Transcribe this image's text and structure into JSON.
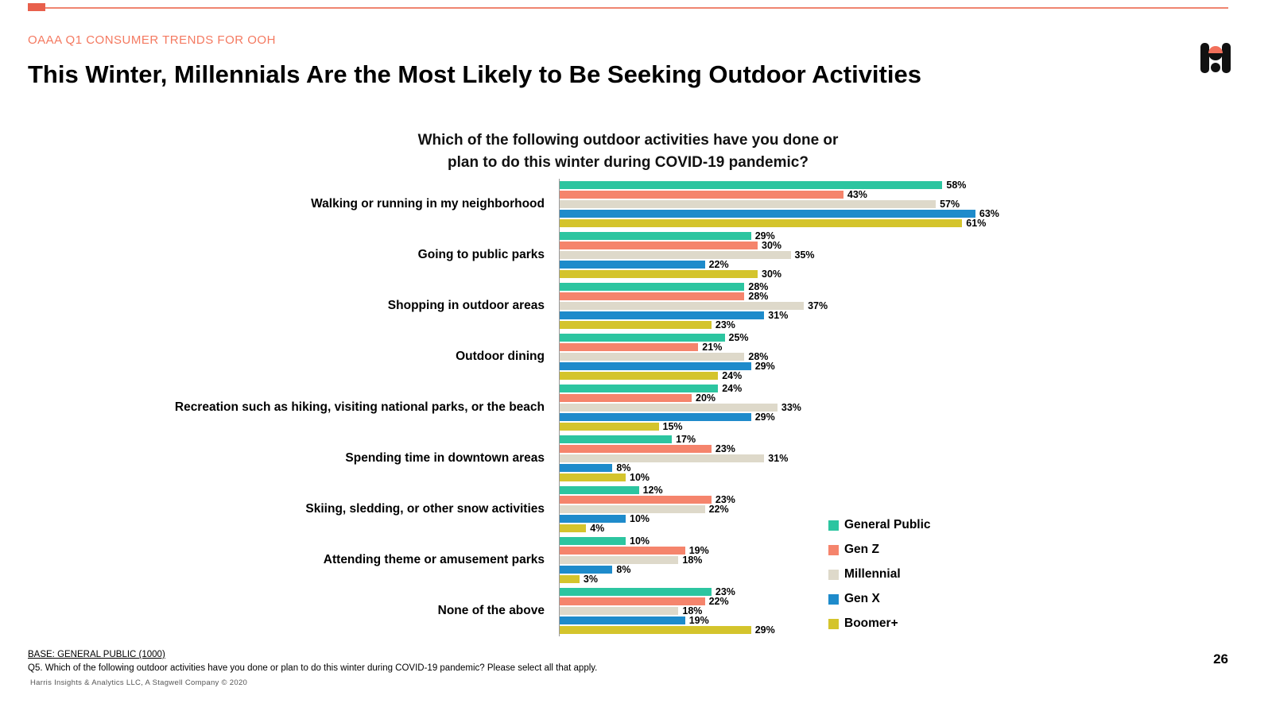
{
  "slide": {
    "eyebrow": "OAAA Q1 CONSUMER TRENDS FOR OOH",
    "title": "This Winter, Millennials Are the Most Likely to Be Seeking Outdoor Activities",
    "page_number": "26",
    "footer": {
      "base": "BASE: GENERAL PUBLIC (1000)",
      "question": "Q5. Which of the following outdoor activities have you done or plan to do this winter during COVID-19 pandemic? Please select all that apply.",
      "source": "Harris Insights & Analytics LLC, A Stagwell Company © 2020"
    },
    "colors": {
      "accent_salmon": "#f47960",
      "rule_salmon": "#ef8570",
      "axis_gray": "#9a9a9a"
    }
  },
  "chart_data": {
    "type": "bar",
    "orientation": "horizontal",
    "title_line1": "Which of the following outdoor activities have you done or",
    "title_line2": "plan to do this winter during COVID-19 pandemic?",
    "value_suffix": "%",
    "xlim": [
      0,
      70
    ],
    "grid": false,
    "legend_position": "bottom-right",
    "categories": [
      "Walking or running in my neighborhood",
      "Going to public parks",
      "Shopping in outdoor areas",
      "Outdoor dining",
      "Recreation such as hiking, visiting national parks, or the beach",
      "Spending time in downtown areas",
      "Skiing, sledding, or other snow activities",
      "Attending theme or amusement parks",
      "None of the above"
    ],
    "series": [
      {
        "name": "General Public",
        "color": "#2cc5a0",
        "values": [
          58,
          29,
          28,
          25,
          24,
          17,
          12,
          10,
          23
        ]
      },
      {
        "name": "Gen Z",
        "color": "#f5846c",
        "values": [
          43,
          30,
          28,
          21,
          20,
          23,
          23,
          19,
          22
        ]
      },
      {
        "name": "Millennial",
        "color": "#ded9ca",
        "values": [
          57,
          35,
          37,
          28,
          33,
          31,
          22,
          18,
          18
        ]
      },
      {
        "name": "Gen X",
        "color": "#1e8bcb",
        "values": [
          63,
          22,
          31,
          29,
          29,
          8,
          10,
          8,
          19
        ]
      },
      {
        "name": "Boomer+",
        "color": "#d4c42c",
        "values": [
          61,
          30,
          23,
          24,
          15,
          10,
          4,
          3,
          29
        ]
      }
    ]
  }
}
